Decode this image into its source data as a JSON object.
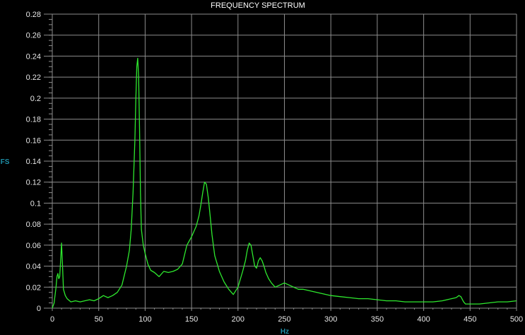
{
  "chart_data": {
    "type": "line",
    "title": "FREQUENCY SPECTRUM",
    "xlabel": "Hz",
    "ylabel": "FS",
    "xlim": [
      0,
      500
    ],
    "ylim": [
      0,
      0.28
    ],
    "x_ticks": [
      0,
      50,
      100,
      150,
      200,
      250,
      300,
      350,
      400,
      450,
      500
    ],
    "x_tick_labels": [
      "0",
      "50",
      "100",
      "150",
      "200",
      "250",
      "300",
      "350",
      "400",
      "450",
      "500"
    ],
    "y_ticks": [
      0,
      0.02,
      0.04,
      0.06,
      0.08,
      0.1,
      0.12,
      0.14,
      0.16,
      0.18,
      0.2,
      0.22,
      0.24,
      0.26,
      0.28
    ],
    "y_tick_labels": [
      "0",
      "0.02",
      "0.04",
      "0.06",
      "0.08",
      "0.1",
      "0.12",
      "0.14",
      "0.16",
      "0.18",
      "0.2",
      "0.22",
      "0.24",
      "0.26",
      "0.28"
    ],
    "grid": true,
    "series": [
      {
        "x": [
          0,
          2,
          4,
          5,
          6,
          7,
          8,
          9,
          10,
          11,
          12,
          14,
          16,
          20,
          25,
          30,
          35,
          40,
          45,
          50,
          55,
          60,
          65,
          70,
          75,
          80,
          83,
          85,
          87,
          89,
          90,
          91,
          92,
          93,
          94,
          95,
          96,
          98,
          100,
          103,
          106,
          110,
          115,
          120,
          125,
          130,
          135,
          140,
          145,
          150,
          155,
          158,
          160,
          162,
          164,
          166,
          168,
          170,
          172,
          175,
          180,
          185,
          190,
          195,
          200,
          205,
          208,
          210,
          212,
          214,
          216,
          218,
          220,
          222,
          224,
          226,
          228,
          230,
          233,
          236,
          240,
          245,
          250,
          255,
          260,
          265,
          270,
          275,
          280,
          285,
          290,
          295,
          300,
          310,
          320,
          330,
          340,
          350,
          360,
          370,
          380,
          390,
          400,
          410,
          420,
          430,
          435,
          438,
          440,
          443,
          445,
          450,
          460,
          470,
          480,
          490,
          500
        ],
        "y": [
          0,
          0.005,
          0.02,
          0.03,
          0.033,
          0.028,
          0.03,
          0.045,
          0.062,
          0.04,
          0.018,
          0.012,
          0.009,
          0.006,
          0.007,
          0.006,
          0.007,
          0.008,
          0.007,
          0.009,
          0.012,
          0.01,
          0.012,
          0.015,
          0.022,
          0.04,
          0.055,
          0.075,
          0.11,
          0.16,
          0.2,
          0.23,
          0.238,
          0.22,
          0.17,
          0.11,
          0.075,
          0.06,
          0.052,
          0.042,
          0.036,
          0.034,
          0.03,
          0.035,
          0.034,
          0.035,
          0.037,
          0.042,
          0.06,
          0.068,
          0.078,
          0.088,
          0.098,
          0.11,
          0.12,
          0.118,
          0.105,
          0.088,
          0.07,
          0.05,
          0.035,
          0.025,
          0.018,
          0.013,
          0.02,
          0.035,
          0.045,
          0.055,
          0.062,
          0.06,
          0.05,
          0.04,
          0.038,
          0.045,
          0.048,
          0.045,
          0.04,
          0.034,
          0.028,
          0.024,
          0.02,
          0.022,
          0.024,
          0.022,
          0.02,
          0.018,
          0.018,
          0.017,
          0.016,
          0.015,
          0.014,
          0.013,
          0.012,
          0.011,
          0.01,
          0.009,
          0.009,
          0.008,
          0.007,
          0.007,
          0.006,
          0.006,
          0.006,
          0.006,
          0.007,
          0.009,
          0.01,
          0.012,
          0.011,
          0.006,
          0.004,
          0.004,
          0.004,
          0.005,
          0.006,
          0.006,
          0.007
        ]
      }
    ]
  },
  "colors": {
    "background": "#000000",
    "grid": "#8c8c8c",
    "series": "#2ee82e",
    "tick_text": "#e6e6e6",
    "title_text": "#ffffff",
    "axis_name": "#1e90a8"
  }
}
